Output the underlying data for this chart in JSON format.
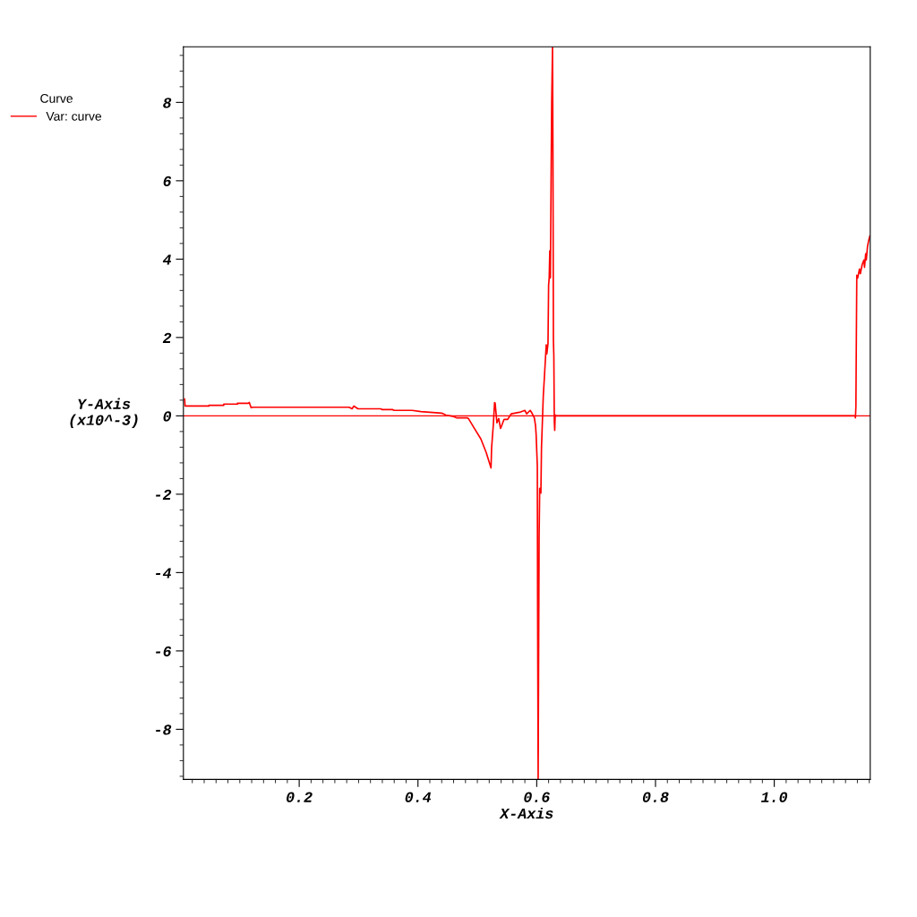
{
  "chart_data": {
    "type": "line",
    "xlabel": "X-Axis",
    "ylabel": "Y-Axis\n(x10^-3)",
    "legend_title": "Curve",
    "legend": "top left",
    "grid": false,
    "marker": "none",
    "line_style": "solid",
    "xlim": [
      0.005,
      1.1616
    ],
    "ylim": [
      -9.28,
      9.42
    ],
    "xticks": [
      {
        "value": 0.2,
        "label": "0.2"
      },
      {
        "value": 0.4,
        "label": "0.4"
      },
      {
        "value": 0.6,
        "label": "0.6"
      },
      {
        "value": 0.8,
        "label": "0.8"
      },
      {
        "value": 1.0,
        "label": "1.0"
      }
    ],
    "yticks": [
      -8,
      -6,
      -4,
      -2,
      0,
      2,
      4,
      6,
      8
    ],
    "ref_lines": [
      {
        "axis": "y",
        "value": 0,
        "label": null,
        "color": "#ff0000"
      }
    ],
    "series": [
      {
        "name": "Var: curve",
        "color": "#ff0000",
        "x": [
          0.0071,
          0.0078,
          0.048,
          0.048,
          0.073,
          0.073,
          0.096,
          0.096,
          0.114,
          0.116,
          0.119,
          0.122,
          0.284,
          0.289,
          0.292,
          0.295,
          0.299,
          0.337,
          0.34,
          0.357,
          0.36,
          0.39,
          0.405,
          0.42,
          0.44,
          0.447,
          0.458,
          0.465,
          0.483,
          0.485,
          0.495,
          0.506,
          0.515,
          0.523,
          0.524,
          0.527,
          0.529,
          0.53,
          0.532,
          0.533,
          0.536,
          0.539,
          0.541,
          0.545,
          0.551,
          0.557,
          0.563,
          0.571,
          0.58,
          0.583,
          0.589,
          0.592,
          0.596,
          0.598,
          0.599,
          0.601,
          0.6015,
          0.6024,
          0.604,
          0.605,
          0.607,
          0.608,
          0.611,
          0.613,
          0.616,
          0.617,
          0.619,
          0.62,
          0.621,
          0.622,
          0.623,
          0.6244,
          0.6252,
          0.6266,
          0.6273,
          0.6281,
          0.6288,
          0.6296,
          0.6303,
          0.6311,
          0.6326,
          1.136,
          1.1367,
          1.1375,
          1.1382,
          1.139,
          1.1405,
          1.1435,
          1.145,
          1.148,
          1.151,
          1.152,
          1.154,
          1.155,
          1.157,
          1.159,
          1.161
        ],
        "values": [
          0.43,
          0.25,
          0.25,
          0.27,
          0.27,
          0.3,
          0.3,
          0.32,
          0.32,
          0.34,
          0.21,
          0.22,
          0.22,
          0.18,
          0.25,
          0.22,
          0.18,
          0.18,
          0.16,
          0.16,
          0.14,
          0.14,
          0.11,
          0.09,
          0.07,
          0.02,
          -0.01,
          -0.05,
          -0.05,
          -0.07,
          -0.32,
          -0.59,
          -0.94,
          -1.33,
          -0.82,
          -0.21,
          0.34,
          0.32,
          -0.02,
          -0.18,
          -0.07,
          -0.32,
          -0.25,
          -0.09,
          -0.09,
          0.05,
          0.07,
          0.09,
          0.14,
          0.05,
          0.14,
          0.07,
          -0.05,
          -0.25,
          -0.48,
          -1.28,
          -5.05,
          -9.28,
          -3.11,
          -1.85,
          -1.97,
          -0.82,
          0.5,
          1.01,
          1.81,
          1.58,
          1.85,
          3.34,
          3.52,
          4.21,
          3.52,
          6.49,
          8.0,
          9.42,
          6.74,
          1.92,
          1.55,
          -0.14,
          -0.37,
          0.02,
          0,
          0,
          -0.05,
          0.25,
          1.9,
          3.59,
          3.52,
          3.75,
          3.63,
          3.86,
          3.98,
          3.79,
          4.14,
          3.98,
          4.32,
          4.48,
          4.59
        ]
      }
    ]
  }
}
